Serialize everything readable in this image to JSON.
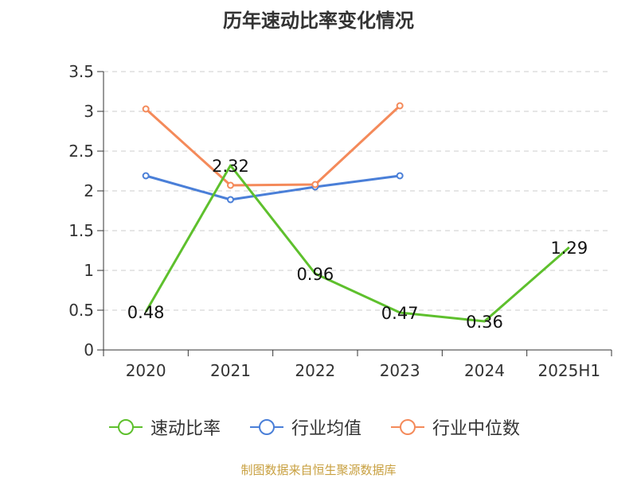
{
  "chart_data": {
    "type": "line",
    "title": "历年速动比率变化情况",
    "categories": [
      "2020",
      "2021",
      "2022",
      "2023",
      "2024",
      "2025H1"
    ],
    "y_ticks": [
      "0",
      "0.5",
      "1",
      "1.5",
      "2",
      "2.5",
      "3",
      "3.5"
    ],
    "ylim": [
      0,
      3.5
    ],
    "grid": true,
    "legend_position": "bottom",
    "series": [
      {
        "name": "速动比率",
        "color": "#5ec02d",
        "values": [
          0.48,
          2.32,
          0.96,
          0.47,
          0.36,
          1.29
        ],
        "labels": [
          "0.48",
          "2.32",
          "0.96",
          "0.47",
          "0.36",
          "1.29"
        ]
      },
      {
        "name": "行业均值",
        "color": "#4a7fd8",
        "values": [
          2.19,
          1.89,
          2.05,
          2.19,
          null,
          null
        ]
      },
      {
        "name": "行业中位数",
        "color": "#f48a5a",
        "values": [
          3.03,
          2.07,
          2.08,
          3.07,
          null,
          null
        ]
      }
    ]
  },
  "source_text": "制图数据来自恒生聚源数据库"
}
